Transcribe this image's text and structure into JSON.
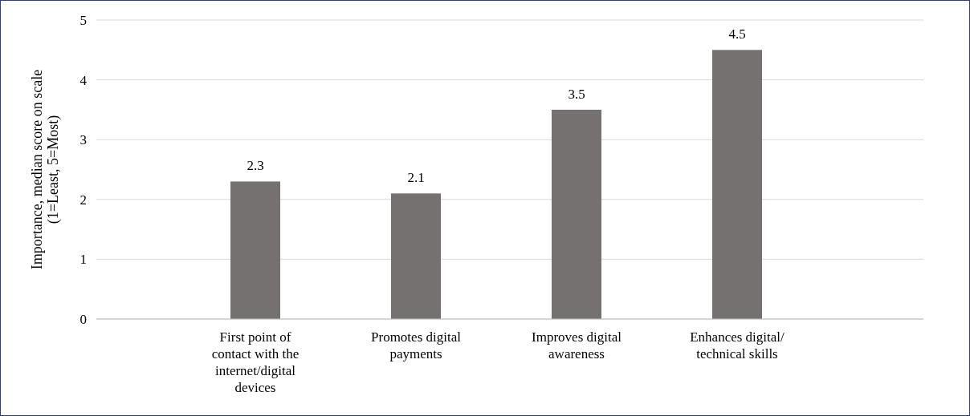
{
  "chart_data": {
    "type": "bar",
    "ylabel": "Importance, median score on scale\n(1=Least, 5=Most)",
    "categories": [
      "First point of contact with the internet/digital devices",
      "Promotes digital payments",
      "Improves digital awareness",
      "Enhances digital/ technical skills"
    ],
    "values": [
      2.3,
      2.1,
      3.5,
      4.5
    ],
    "color": "#767171",
    "ylim": [
      0,
      5
    ],
    "yticks": [
      0,
      1,
      2,
      3,
      4,
      5
    ],
    "grid": "y",
    "data_labels": true
  }
}
